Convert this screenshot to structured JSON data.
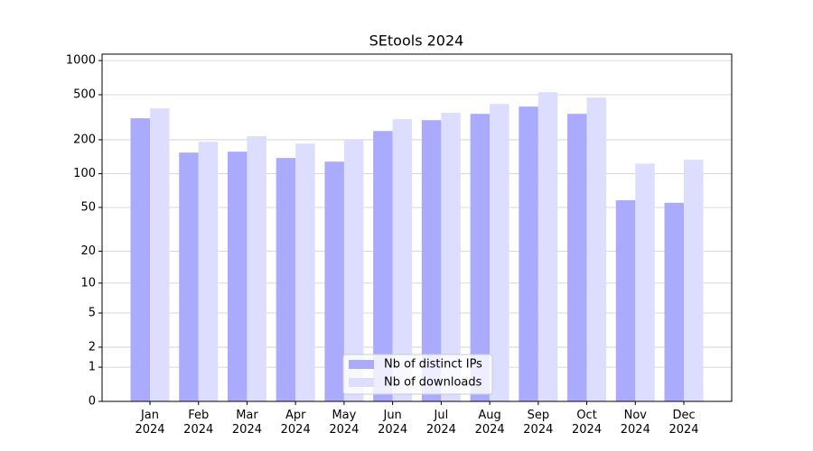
{
  "chart_data": {
    "type": "bar",
    "title": "SEtools 2024",
    "categories": [
      "Jan\n2024",
      "Feb\n2024",
      "Mar\n2024",
      "Apr\n2024",
      "May\n2024",
      "Jun\n2024",
      "Jul\n2024",
      "Aug\n2024",
      "Sep\n2024",
      "Oct\n2024",
      "Nov\n2024",
      "Dec\n2024"
    ],
    "series": [
      {
        "name": "Nb of distinct IPs",
        "color": "#aaaaff",
        "values": [
          310,
          154,
          157,
          138,
          128,
          239,
          298,
          339,
          393,
          339,
          58,
          55
        ]
      },
      {
        "name": "Nb of downloads",
        "color": "#ddddff",
        "values": [
          379,
          192,
          215,
          185,
          203,
          304,
          346,
          415,
          527,
          472,
          123,
          133
        ]
      }
    ],
    "yscale": "log1p",
    "ylim": [
      0,
      1140
    ],
    "yticks": [
      0,
      1,
      2,
      5,
      10,
      20,
      50,
      100,
      200,
      500,
      1000
    ],
    "grid": true,
    "legend": "lower center"
  }
}
